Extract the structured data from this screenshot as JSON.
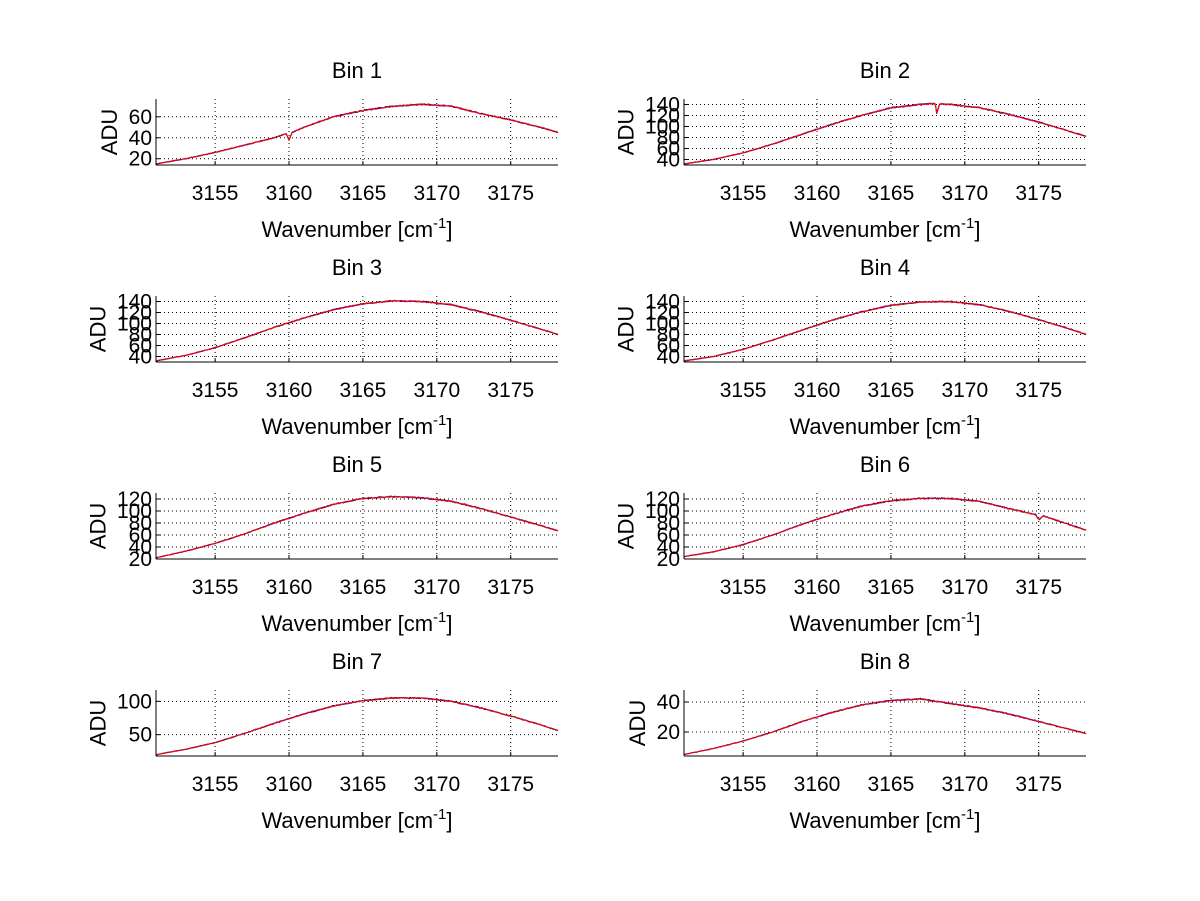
{
  "figure": {
    "background": "#ffffff",
    "series_colors": [
      "#ffd400",
      "#000000",
      "#0000ff",
      "#ff0000"
    ]
  },
  "chart_data": [
    {
      "type": "line",
      "title": "Bin 1",
      "xlabel": "Wavenumber [cm",
      "xlabel_superscript": "-1",
      "xlabel_suffix": "]",
      "ylabel": "ADU",
      "xlim": [
        3151,
        3178.2
      ],
      "ylim": [
        14,
        77
      ],
      "xticks": [
        3155,
        3160,
        3165,
        3170,
        3175
      ],
      "yticks": [
        20,
        40,
        60
      ],
      "grid": true,
      "x": [
        3151,
        3153,
        3155,
        3157,
        3159,
        3159.8,
        3160,
        3160.2,
        3161,
        3163,
        3165,
        3167,
        3169,
        3171,
        3173,
        3175,
        3177,
        3178.2
      ],
      "y": [
        15,
        20,
        26,
        33,
        40,
        44,
        38,
        45,
        50,
        60,
        66,
        70,
        72,
        70,
        63,
        57,
        50,
        45
      ]
    },
    {
      "type": "line",
      "title": "Bin 2",
      "xlabel": "Wavenumber [cm",
      "xlabel_superscript": "-1",
      "xlabel_suffix": "]",
      "ylabel": "ADU",
      "xlim": [
        3151,
        3178.2
      ],
      "ylim": [
        30,
        150
      ],
      "xticks": [
        3155,
        3160,
        3165,
        3170,
        3175
      ],
      "yticks": [
        40,
        60,
        80,
        100,
        120,
        140
      ],
      "grid": true,
      "x": [
        3151,
        3153,
        3155,
        3157,
        3159,
        3161,
        3163,
        3165,
        3167,
        3168,
        3168.1,
        3168.3,
        3169,
        3171,
        3173,
        3175,
        3177,
        3178.2
      ],
      "y": [
        32,
        40,
        52,
        68,
        86,
        104,
        120,
        134,
        140,
        142,
        124,
        141,
        140,
        134,
        122,
        108,
        92,
        82
      ]
    },
    {
      "type": "line",
      "title": "Bin 3",
      "xlabel": "Wavenumber [cm",
      "xlabel_superscript": "-1",
      "xlabel_suffix": "]",
      "ylabel": "ADU",
      "xlim": [
        3151,
        3178.2
      ],
      "ylim": [
        30,
        150
      ],
      "xticks": [
        3155,
        3160,
        3165,
        3170,
        3175
      ],
      "yticks": [
        40,
        60,
        80,
        100,
        120,
        140
      ],
      "grid": true,
      "x": [
        3151,
        3153,
        3155,
        3157,
        3159,
        3161,
        3163,
        3165,
        3167,
        3169,
        3171,
        3173,
        3175,
        3177,
        3178.2
      ],
      "y": [
        32,
        42,
        56,
        74,
        93,
        110,
        125,
        136,
        141,
        140,
        134,
        121,
        106,
        90,
        80
      ]
    },
    {
      "type": "line",
      "title": "Bin 4",
      "xlabel": "Wavenumber [cm",
      "xlabel_superscript": "-1",
      "xlabel_suffix": "]",
      "ylabel": "ADU",
      "xlim": [
        3151,
        3178.2
      ],
      "ylim": [
        30,
        150
      ],
      "xticks": [
        3155,
        3160,
        3165,
        3170,
        3175
      ],
      "yticks": [
        40,
        60,
        80,
        100,
        120,
        140
      ],
      "grid": true,
      "x": [
        3151,
        3153,
        3155,
        3157,
        3159,
        3161,
        3163,
        3165,
        3167,
        3169,
        3171,
        3173,
        3175,
        3177,
        3178.2
      ],
      "y": [
        32,
        40,
        53,
        70,
        88,
        106,
        121,
        133,
        139,
        140,
        134,
        122,
        107,
        91,
        80
      ]
    },
    {
      "type": "line",
      "title": "Bin 5",
      "xlabel": "Wavenumber [cm",
      "xlabel_superscript": "-1",
      "xlabel_suffix": "]",
      "ylabel": "ADU",
      "xlim": [
        3151,
        3178.2
      ],
      "ylim": [
        20,
        130
      ],
      "xticks": [
        3155,
        3160,
        3165,
        3170,
        3175
      ],
      "yticks": [
        20,
        40,
        60,
        80,
        100,
        120
      ],
      "grid": true,
      "x": [
        3151,
        3153,
        3155,
        3157,
        3159,
        3161,
        3163,
        3165,
        3167,
        3169,
        3171,
        3173,
        3175,
        3177,
        3178.2
      ],
      "y": [
        22,
        33,
        46,
        62,
        80,
        96,
        111,
        121,
        124,
        122,
        116,
        104,
        90,
        76,
        67
      ]
    },
    {
      "type": "line",
      "title": "Bin 6",
      "xlabel": "Wavenumber [cm",
      "xlabel_superscript": "-1",
      "xlabel_suffix": "]",
      "ylabel": "ADU",
      "xlim": [
        3151,
        3178.2
      ],
      "ylim": [
        20,
        130
      ],
      "xticks": [
        3155,
        3160,
        3165,
        3170,
        3175
      ],
      "yticks": [
        20,
        40,
        60,
        80,
        100,
        120
      ],
      "grid": true,
      "x": [
        3151,
        3153,
        3155,
        3157,
        3159,
        3161,
        3163,
        3165,
        3167,
        3169,
        3171,
        3173,
        3174.8,
        3175,
        3175.3,
        3177,
        3178.2
      ],
      "y": [
        24,
        32,
        44,
        60,
        78,
        94,
        108,
        117,
        121,
        121,
        116,
        104,
        94,
        85,
        92,
        78,
        68
      ]
    },
    {
      "type": "line",
      "title": "Bin 7",
      "xlabel": "Wavenumber [cm",
      "xlabel_superscript": "-1",
      "xlabel_suffix": "]",
      "ylabel": "ADU",
      "xlim": [
        3151,
        3178.2
      ],
      "ylim": [
        18,
        117
      ],
      "xticks": [
        3155,
        3160,
        3165,
        3170,
        3175
      ],
      "yticks": [
        50,
        100
      ],
      "grid": true,
      "x": [
        3151,
        3153,
        3155,
        3157,
        3159,
        3161,
        3163,
        3165,
        3167,
        3169,
        3171,
        3173,
        3175,
        3177,
        3178.2
      ],
      "y": [
        20,
        28,
        38,
        52,
        67,
        81,
        93,
        101,
        105,
        105,
        100,
        90,
        78,
        65,
        56
      ]
    },
    {
      "type": "line",
      "title": "Bin 8",
      "xlabel": "Wavenumber [cm",
      "xlabel_superscript": "-1",
      "xlabel_suffix": "]",
      "ylabel": "ADU",
      "xlim": [
        3151,
        3178.2
      ],
      "ylim": [
        4,
        48
      ],
      "xticks": [
        3155,
        3160,
        3165,
        3170,
        3175
      ],
      "yticks": [
        20,
        40
      ],
      "grid": true,
      "x": [
        3151,
        3153,
        3155,
        3157,
        3159,
        3161,
        3163,
        3165,
        3167,
        3169,
        3171,
        3173,
        3175,
        3177,
        3178.2
      ],
      "y": [
        5,
        9,
        14,
        20,
        27,
        33,
        38,
        41,
        42,
        39,
        36,
        32,
        27,
        22,
        19
      ]
    }
  ]
}
